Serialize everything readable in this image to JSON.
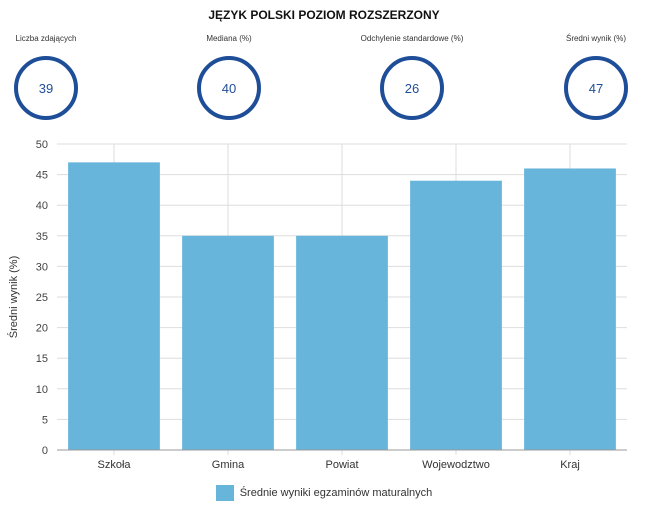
{
  "header": {
    "title": "JĘZYK POLSKI POZIOM ROZSZERZONY"
  },
  "stats": [
    {
      "label": "Liczba zdających",
      "value": "39"
    },
    {
      "label": "Mediana (%)",
      "value": "40"
    },
    {
      "label": "Odchylenie standardowe (%)",
      "value": "26"
    },
    {
      "label": "Średni wynik (%)",
      "value": "47"
    }
  ],
  "colors": {
    "bar": "#68b5dc",
    "circle": "#1f4e99",
    "grid": "#dddddd"
  },
  "chart_data": {
    "type": "bar",
    "title": "",
    "xlabel": "",
    "ylabel": "Średni wynik (%)",
    "ylim": [
      0,
      50
    ],
    "yticks": [
      0,
      5,
      10,
      15,
      20,
      25,
      30,
      35,
      40,
      45,
      50
    ],
    "grid": true,
    "legend_position": "bottom",
    "categories": [
      "Szkoła",
      "Gmina",
      "Powiat",
      "Wojewodztwo",
      "Kraj"
    ],
    "series": [
      {
        "name": "Średnie wyniki egzaminów maturalnych",
        "values": [
          47,
          35,
          35,
          44,
          46
        ]
      }
    ]
  }
}
